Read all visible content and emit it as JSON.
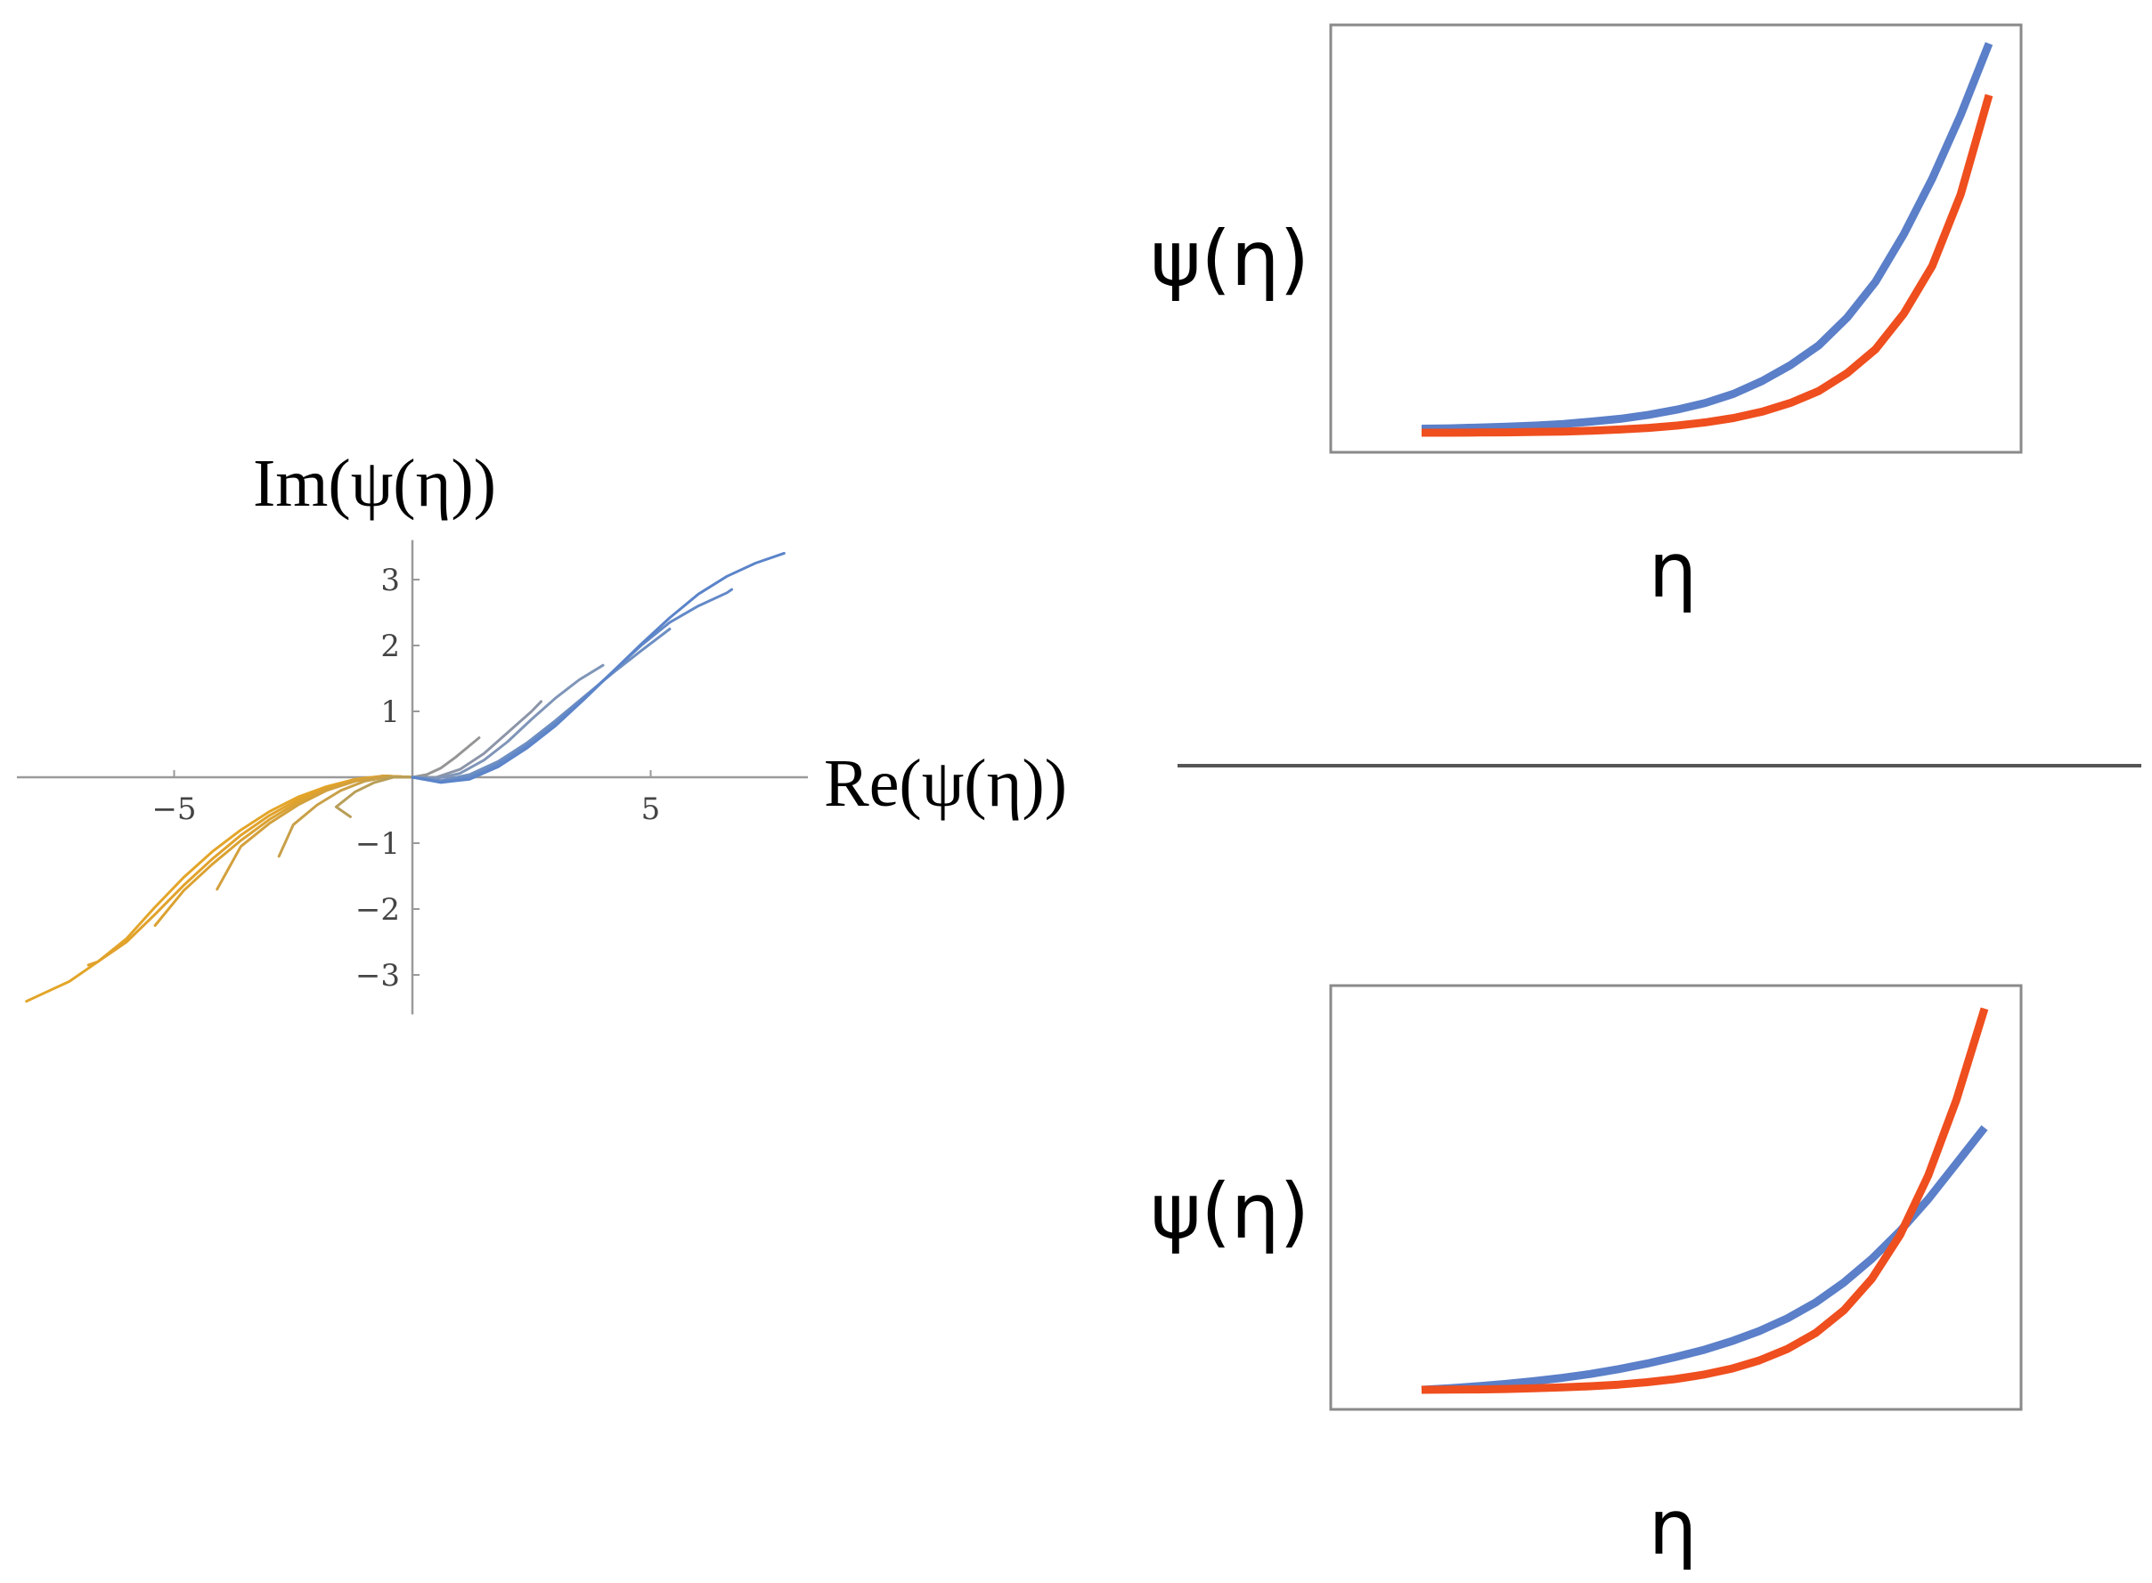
{
  "chart_data": [
    {
      "type": "line",
      "panel": "left",
      "xlabel": "Re(ψ(η))",
      "ylabel": "Im(ψ(η))",
      "xlim": [
        -8.3,
        8.3
      ],
      "ylim": [
        -3.6,
        3.6
      ],
      "x_ticks": [
        -5,
        5
      ],
      "x_tick_labels": [
        "−5",
        "5"
      ],
      "y_ticks": [
        -3,
        -2,
        -1,
        1,
        2,
        3
      ],
      "y_tick_labels": [
        "−3",
        "−2",
        "−1",
        "1",
        "2",
        "3"
      ],
      "grid": false,
      "series": [
        {
          "color": "#e3a529",
          "x": [
            0,
            -0.6,
            -1.2,
            -1.8,
            -2.4,
            -3.0,
            -3.6,
            -4.2,
            -4.8,
            -5.4,
            -6.0,
            -6.6,
            -7.2,
            -7.8,
            -8.1
          ],
          "y": [
            0,
            0.02,
            -0.03,
            -0.14,
            -0.3,
            -0.52,
            -0.8,
            -1.13,
            -1.52,
            -1.97,
            -2.45,
            -2.8,
            -3.1,
            -3.3,
            -3.4
          ]
        },
        {
          "color": "#e1a22c",
          "x": [
            0,
            -0.6,
            -1.2,
            -1.8,
            -2.4,
            -3.0,
            -3.6,
            -4.2,
            -4.8,
            -5.4,
            -6.0,
            -6.6,
            -6.8
          ],
          "y": [
            0,
            0.02,
            -0.04,
            -0.16,
            -0.34,
            -0.58,
            -0.88,
            -1.24,
            -1.64,
            -2.08,
            -2.5,
            -2.8,
            -2.85
          ]
        },
        {
          "color": "#dba232",
          "x": [
            0,
            -0.6,
            -1.2,
            -1.8,
            -2.4,
            -3.0,
            -3.6,
            -4.2,
            -4.8,
            -5.4
          ],
          "y": [
            0,
            0.02,
            -0.05,
            -0.18,
            -0.38,
            -0.64,
            -0.96,
            -1.32,
            -1.72,
            -2.25
          ]
        },
        {
          "color": "#d3a03c",
          "x": [
            0,
            -0.6,
            -1.2,
            -1.8,
            -2.4,
            -3.0,
            -3.6,
            -4.1
          ],
          "y": [
            0,
            0.02,
            -0.06,
            -0.2,
            -0.42,
            -0.7,
            -1.05,
            -1.7
          ]
        },
        {
          "color": "#c9a048",
          "x": [
            0,
            -0.5,
            -1.0,
            -1.5,
            -2.0,
            -2.5,
            -2.8
          ],
          "y": [
            0,
            0.01,
            -0.06,
            -0.2,
            -0.42,
            -0.72,
            -1.2
          ]
        },
        {
          "color": "#b89e58",
          "x": [
            0,
            -0.4,
            -0.8,
            -1.2,
            -1.6,
            -1.3
          ],
          "y": [
            0,
            0.0,
            -0.08,
            -0.22,
            -0.45,
            -0.6
          ]
        },
        {
          "color": "#959595",
          "x": [
            0,
            0.3,
            0.6,
            0.9,
            1.2,
            1.4
          ],
          "y": [
            0,
            0.04,
            0.14,
            0.3,
            0.48,
            0.6
          ]
        },
        {
          "color": "#8c95a8",
          "x": [
            0,
            0.5,
            1.0,
            1.5,
            2.0,
            2.5,
            2.7
          ],
          "y": [
            0,
            0.0,
            0.12,
            0.36,
            0.68,
            1.0,
            1.15
          ]
        },
        {
          "color": "#7f95b8",
          "x": [
            0,
            0.5,
            1.0,
            1.5,
            2.0,
            2.5,
            3.0,
            3.5,
            4.0
          ],
          "y": [
            0,
            -0.02,
            0.06,
            0.26,
            0.54,
            0.88,
            1.2,
            1.48,
            1.7
          ]
        },
        {
          "color": "#6e8fc2",
          "x": [
            0,
            0.6,
            1.2,
            1.8,
            2.4,
            3.0,
            3.6,
            4.2,
            4.8,
            5.4
          ],
          "y": [
            0,
            -0.05,
            0.04,
            0.24,
            0.52,
            0.86,
            1.22,
            1.58,
            1.92,
            2.25
          ]
        },
        {
          "color": "#6389c8",
          "x": [
            0,
            0.6,
            1.2,
            1.8,
            2.4,
            3.0,
            3.6,
            4.2,
            4.8,
            5.4,
            6.0,
            6.6,
            6.7
          ],
          "y": [
            0,
            -0.07,
            0.0,
            0.2,
            0.48,
            0.82,
            1.2,
            1.6,
            2.0,
            2.35,
            2.6,
            2.8,
            2.85
          ]
        },
        {
          "color": "#5b84c9",
          "x": [
            0,
            0.6,
            1.2,
            1.8,
            2.4,
            3.0,
            3.6,
            4.2,
            4.8,
            5.4,
            6.0,
            6.6,
            7.2,
            7.8
          ],
          "y": [
            0,
            -0.08,
            -0.03,
            0.16,
            0.44,
            0.78,
            1.18,
            1.6,
            2.02,
            2.42,
            2.78,
            3.05,
            3.25,
            3.4
          ]
        }
      ]
    },
    {
      "type": "line",
      "panel": "top-right",
      "xlabel": "η",
      "ylabel": "ψ(η)",
      "x_ticks": [],
      "y_ticks": [],
      "grid": false,
      "series": [
        {
          "color": "#5b7fc8",
          "x": [
            0,
            0.05,
            0.1,
            0.15,
            0.2,
            0.25,
            0.3,
            0.35,
            0.4,
            0.45,
            0.5,
            0.55,
            0.6,
            0.65,
            0.7,
            0.75,
            0.8,
            0.85,
            0.9,
            0.95,
            1.0
          ],
          "y": [
            0.01,
            0.011,
            0.013,
            0.015,
            0.018,
            0.022,
            0.028,
            0.035,
            0.045,
            0.058,
            0.075,
            0.098,
            0.13,
            0.17,
            0.22,
            0.29,
            0.38,
            0.5,
            0.64,
            0.8,
            0.98
          ]
        },
        {
          "color": "#ef4e1e",
          "x": [
            0,
            0.05,
            0.1,
            0.15,
            0.2,
            0.25,
            0.3,
            0.35,
            0.4,
            0.45,
            0.5,
            0.55,
            0.6,
            0.65,
            0.7,
            0.75,
            0.8,
            0.85,
            0.9,
            0.95,
            1.0
          ],
          "y": [
            0.0,
            0.0,
            0.0005,
            0.001,
            0.002,
            0.003,
            0.005,
            0.008,
            0.012,
            0.018,
            0.026,
            0.037,
            0.053,
            0.075,
            0.105,
            0.15,
            0.21,
            0.3,
            0.42,
            0.6,
            0.85
          ]
        }
      ]
    },
    {
      "type": "line",
      "panel": "bottom-right",
      "xlabel": "η",
      "ylabel": "ψ(η)",
      "x_ticks": [],
      "y_ticks": [],
      "grid": false,
      "series": [
        {
          "color": "#5b7fc8",
          "x": [
            0,
            0.05,
            0.1,
            0.15,
            0.2,
            0.25,
            0.3,
            0.35,
            0.4,
            0.45,
            0.5,
            0.55,
            0.6,
            0.65,
            0.7,
            0.75,
            0.8,
            0.85,
            0.9,
            0.95,
            1.0
          ],
          "y": [
            0.0,
            0.004,
            0.009,
            0.015,
            0.022,
            0.03,
            0.04,
            0.052,
            0.066,
            0.082,
            0.1,
            0.122,
            0.148,
            0.18,
            0.22,
            0.27,
            0.33,
            0.4,
            0.48,
            0.57,
            0.66
          ]
        },
        {
          "color": "#ef4e1e",
          "x": [
            0,
            0.05,
            0.1,
            0.15,
            0.2,
            0.25,
            0.3,
            0.35,
            0.4,
            0.45,
            0.5,
            0.55,
            0.6,
            0.65,
            0.7,
            0.75,
            0.8,
            0.85,
            0.9,
            0.95,
            1.0
          ],
          "y": [
            0.0,
            0.0005,
            0.001,
            0.002,
            0.004,
            0.006,
            0.009,
            0.013,
            0.019,
            0.027,
            0.038,
            0.053,
            0.074,
            0.103,
            0.143,
            0.2,
            0.28,
            0.39,
            0.54,
            0.73,
            0.96
          ]
        }
      ]
    }
  ]
}
